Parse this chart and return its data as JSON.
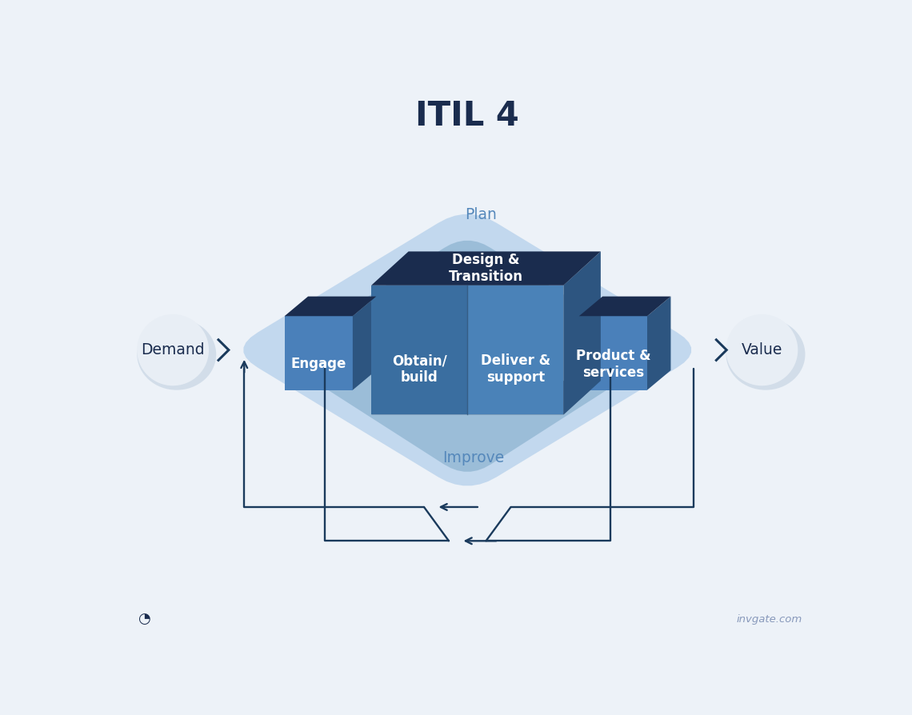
{
  "title": "ITIL 4",
  "background_color": "#edf2f8",
  "title_color": "#1a2c4e",
  "title_fontsize": 30,
  "arrow_color": "#1a3a5c",
  "label_color_dark": "#1a2c4e",
  "label_color_white": "#ffffff",
  "label_color_blue": "#5588bb",
  "plan_label": "Plan",
  "improve_label": "Improve",
  "demand_label": "Demand",
  "value_label": "Value",
  "engage_label": "Engage",
  "obtain_label": "Obtain/\nbuild",
  "deliver_label": "Deliver &\nsupport",
  "design_label": "Design &\nTransition",
  "product_label": "Product &\nservices",
  "watermark": "invgate.com",
  "colors": {
    "outer_shape": "#c2d8ee",
    "inner_shape": "#9bbdd8",
    "big_cube_left_front": "#3a6ea0",
    "big_cube_right_front": "#4a82b8",
    "big_cube_top": "#1a2c4e",
    "big_cube_right_side": "#2d5580",
    "big_cube_bottom_shadow": "#2a4870",
    "small_cube_front": "#4a80ba",
    "small_cube_top": "#1a2c4e",
    "small_cube_right": "#2d5580",
    "circle_bg": "#e8eef5",
    "circle_shadow": "#ccd8e8"
  }
}
